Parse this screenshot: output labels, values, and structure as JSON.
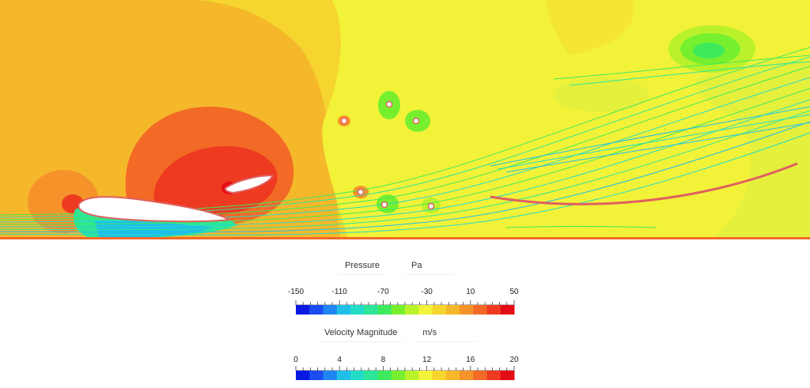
{
  "colormap": [
    "#0a1ae0",
    "#1b4cf2",
    "#1f86f2",
    "#1fbfe8",
    "#22dcc8",
    "#2de69a",
    "#3eea5c",
    "#76ef2e",
    "#b9f22a",
    "#f2f238",
    "#f5d52e",
    "#f5b82a",
    "#f5922a",
    "#f26a26",
    "#ee3a20",
    "#e40c14"
  ],
  "pressure_legend": {
    "label": "Pressure",
    "unit": "Pa",
    "ticks": [
      "-150",
      "-110",
      "-70",
      "-30",
      "10",
      "50"
    ]
  },
  "velocity_legend": {
    "label": "Velocity Magnitude",
    "unit": "m/s",
    "ticks": [
      "0",
      "4",
      "8",
      "12",
      "16",
      "20"
    ]
  }
}
